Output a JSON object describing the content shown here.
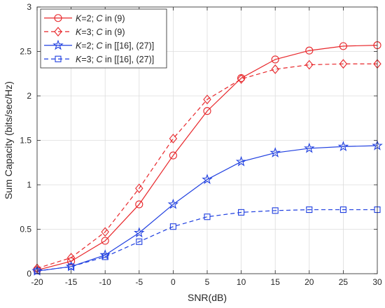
{
  "chart_data": {
    "type": "line",
    "title": "",
    "xlabel": "SNR(dB)",
    "ylabel": "Sum Capacity (bits/sec/Hz)",
    "xlim": [
      -20,
      30
    ],
    "ylim": [
      0,
      3
    ],
    "xticks": [
      -20,
      -15,
      -10,
      -5,
      0,
      5,
      10,
      15,
      20,
      25,
      30
    ],
    "yticks": [
      0,
      0.5,
      1,
      1.5,
      2,
      2.5,
      3
    ],
    "xtick_labels": [
      "-20",
      "-15",
      "-10",
      "-5",
      "0",
      "5",
      "10",
      "15",
      "20",
      "25",
      "30"
    ],
    "ytick_labels": [
      "0",
      "0.5",
      "1",
      "1.5",
      "2",
      "2.5",
      "3"
    ],
    "grid": true,
    "legend_position": "top-left",
    "x": [
      -20,
      -15,
      -10,
      -5,
      0,
      5,
      10,
      15,
      20,
      25,
      30
    ],
    "series": [
      {
        "name": "K=2; C in (9)",
        "label_parts": [
          {
            "t": "K",
            "i": true
          },
          {
            "t": "=2; ",
            "i": false
          },
          {
            "t": "C",
            "i": true
          },
          {
            "t": " in (9)",
            "i": false
          }
        ],
        "values": [
          0.04,
          0.14,
          0.37,
          0.78,
          1.33,
          1.83,
          2.2,
          2.41,
          2.51,
          2.56,
          2.57
        ],
        "color": "#e8262a",
        "dash": "solid",
        "marker": "circle"
      },
      {
        "name": "K=3; C in (9)",
        "label_parts": [
          {
            "t": "K",
            "i": true
          },
          {
            "t": "=3; ",
            "i": false
          },
          {
            "t": "C",
            "i": true
          },
          {
            "t": " in (9)",
            "i": false
          }
        ],
        "values": [
          0.06,
          0.18,
          0.47,
          0.96,
          1.52,
          1.96,
          2.19,
          2.3,
          2.35,
          2.36,
          2.36
        ],
        "color": "#e8262a",
        "dash": "dashed",
        "marker": "diamond"
      },
      {
        "name": "K=2; C in [[16], (27)]",
        "label_parts": [
          {
            "t": "K",
            "i": true
          },
          {
            "t": "=2; ",
            "i": false
          },
          {
            "t": "C",
            "i": true
          },
          {
            "t": " in [[16], (27)]",
            "i": false
          }
        ],
        "values": [
          0.03,
          0.08,
          0.21,
          0.46,
          0.78,
          1.06,
          1.26,
          1.36,
          1.41,
          1.43,
          1.44
        ],
        "color": "#1f3fe0",
        "dash": "solid",
        "marker": "star"
      },
      {
        "name": "K=3; C in [[16], (27)]",
        "label_parts": [
          {
            "t": "K",
            "i": true
          },
          {
            "t": "=3; ",
            "i": false
          },
          {
            "t": "C",
            "i": true
          },
          {
            "t": " in [[16], (27)]",
            "i": false
          }
        ],
        "values": [
          0.03,
          0.08,
          0.19,
          0.36,
          0.53,
          0.64,
          0.69,
          0.71,
          0.72,
          0.72,
          0.72
        ],
        "color": "#1f3fe0",
        "dash": "dashed",
        "marker": "square"
      }
    ]
  }
}
